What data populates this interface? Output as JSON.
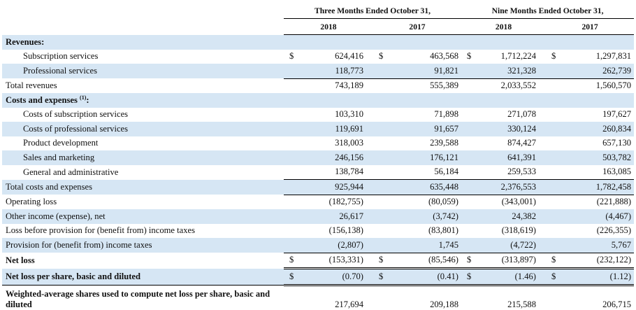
{
  "header": {
    "three_months": "Three Months Ended October 31,",
    "nine_months": "Nine Months Ended October 31,",
    "years": [
      "2018",
      "2017",
      "2018",
      "2017"
    ]
  },
  "currency_symbol": "$",
  "colors": {
    "row_shade": "#d6e6f4"
  },
  "rows": [
    {
      "label": "Revenues:",
      "style": "bold",
      "shade": true,
      "cells": [
        "",
        "",
        "",
        ""
      ]
    },
    {
      "label": "Subscription services",
      "style": "indent",
      "shade": false,
      "dollar": true,
      "cells": [
        "624,416",
        "463,568",
        "1,712,224",
        "1,297,831"
      ]
    },
    {
      "label": "Professional services",
      "style": "indent",
      "shade": true,
      "cells": [
        "118,773",
        "91,821",
        "321,328",
        "262,739"
      ]
    },
    {
      "label": "Total revenues",
      "style": "plain",
      "shade": false,
      "cells": [
        "743,189",
        "555,389",
        "2,033,552",
        "1,560,570"
      ]
    },
    {
      "label": "Costs and expenses",
      "footnote": "(1)",
      "label_suffix": ":",
      "style": "bold",
      "shade": true,
      "cells": [
        "",
        "",
        "",
        ""
      ]
    },
    {
      "label": "Costs of subscription services",
      "style": "indent",
      "shade": false,
      "cells": [
        "103,310",
        "71,898",
        "271,078",
        "197,627"
      ]
    },
    {
      "label": "Costs of professional services",
      "style": "indent",
      "shade": true,
      "cells": [
        "119,691",
        "91,657",
        "330,124",
        "260,834"
      ]
    },
    {
      "label": "Product development",
      "style": "indent",
      "shade": false,
      "cells": [
        "318,003",
        "239,588",
        "874,427",
        "657,130"
      ]
    },
    {
      "label": "Sales and marketing",
      "style": "indent",
      "shade": true,
      "cells": [
        "246,156",
        "176,121",
        "641,391",
        "503,782"
      ]
    },
    {
      "label": "General and administrative",
      "style": "indent",
      "shade": false,
      "cells": [
        "138,784",
        "56,184",
        "259,533",
        "163,085"
      ]
    },
    {
      "label": "Total costs and expenses",
      "style": "plain",
      "shade": true,
      "cells": [
        "925,944",
        "635,448",
        "2,376,553",
        "1,782,458"
      ]
    },
    {
      "label": "Operating loss",
      "style": "plain",
      "shade": false,
      "cells": [
        "(182,755)",
        "(80,059)",
        "(343,001)",
        "(221,888)"
      ]
    },
    {
      "label": "Other income (expense), net",
      "style": "plain",
      "shade": true,
      "cells": [
        "26,617",
        "(3,742)",
        "24,382",
        "(4,467)"
      ]
    },
    {
      "label": "Loss before provision for (benefit from) income taxes",
      "style": "plain",
      "shade": false,
      "cells": [
        "(156,138)",
        "(83,801)",
        "(318,619)",
        "(226,355)"
      ]
    },
    {
      "label": "Provision for (benefit from) income taxes",
      "style": "plain",
      "shade": true,
      "cells": [
        "(2,807)",
        "1,745",
        "(4,722)",
        "5,767"
      ]
    },
    {
      "label": "Net loss",
      "style": "bold",
      "shade": false,
      "dollar": true,
      "cells": [
        "(153,331)",
        "(85,546)",
        "(313,897)",
        "(232,122)"
      ]
    },
    {
      "label": "Net loss per share, basic and diluted",
      "style": "bold",
      "shade": true,
      "dollar": true,
      "cells": [
        "(0.70)",
        "(0.41)",
        "(1.46)",
        "(1.12)"
      ]
    },
    {
      "label": "Weighted-average shares used to compute net loss per share, basic and diluted",
      "style": "bold",
      "shade": false,
      "cells": [
        "217,694",
        "209,188",
        "215,588",
        "206,715"
      ]
    }
  ]
}
